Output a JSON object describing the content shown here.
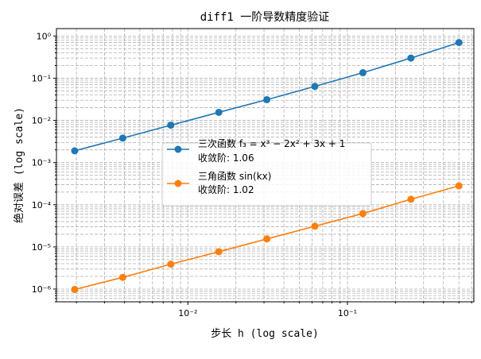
{
  "chart_data": {
    "type": "line",
    "title": "diff1 一阶导数精度验证",
    "xlabel": "步长 h (log scale)",
    "ylabel": "绝对误差 (log scale)",
    "xscale": "log",
    "yscale": "log",
    "xlim": [
      0.0015,
      0.62
    ],
    "ylim": [
      5e-07,
      1.5
    ],
    "x_tick_labels": [
      "10⁻²",
      "10⁻¹"
    ],
    "y_tick_labels": [
      "10⁰",
      "10⁻¹",
      "10⁻²",
      "10⁻³",
      "10⁻⁴",
      "10⁻⁵",
      "10⁻⁶"
    ],
    "grid": true,
    "legend_position": "center",
    "x": [
      0.001953,
      0.003906,
      0.007813,
      0.015625,
      0.03125,
      0.0625,
      0.125,
      0.25,
      0.5
    ],
    "series": [
      {
        "name": "三次函数 f₃ = x³ − 2x² + 3x + 1",
        "order_label": "收敛阶: 1.06",
        "color": "#1f77b4",
        "values": [
          0.0019,
          0.0038,
          0.0077,
          0.0155,
          0.031,
          0.064,
          0.135,
          0.3,
          0.7
        ]
      },
      {
        "name": "三角函数 sin(kx)",
        "order_label": "收敛阶: 1.02",
        "color": "#ff7f0e",
        "values": [
          9.8e-07,
          1.9e-06,
          3.9e-06,
          7.7e-06,
          1.55e-05,
          3.1e-05,
          6.2e-05,
          0.000135,
          0.00028
        ]
      }
    ]
  }
}
